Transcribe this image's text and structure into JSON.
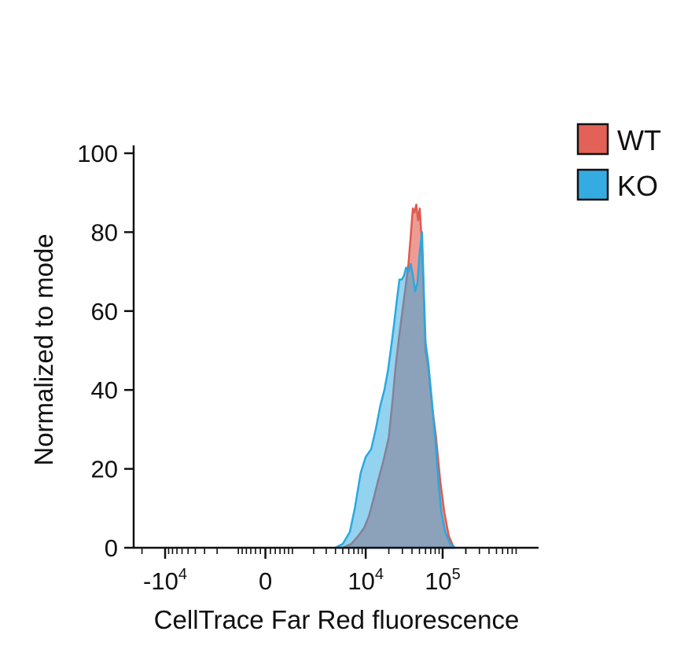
{
  "chart_data": {
    "type": "area",
    "title": "",
    "xlabel": "CellTrace Far Red fluorescence",
    "ylabel": "Normalized to mode",
    "x_scale": "biexponential",
    "ylim": [
      0,
      100
    ],
    "xlim": [
      -15000,
      200000
    ],
    "x_ticks": [
      {
        "value": -10000,
        "base": "-10",
        "exp": "4"
      },
      {
        "value": 0,
        "base": "0",
        "exp": ""
      },
      {
        "value": 10000,
        "base": "10",
        "exp": "4"
      },
      {
        "value": 100000,
        "base": "10",
        "exp": "5"
      }
    ],
    "y_ticks": [
      {
        "value": 0,
        "label": "0"
      },
      {
        "value": 20,
        "label": "20"
      },
      {
        "value": 40,
        "label": "40"
      },
      {
        "value": 60,
        "label": "60"
      },
      {
        "value": 80,
        "label": "80"
      },
      {
        "value": 100,
        "label": "100"
      }
    ],
    "legend_position": "top-right",
    "series": [
      {
        "name": "WT",
        "color": "#e05a4e",
        "fill_opacity": 0.6,
        "points": [
          [
            5000,
            0
          ],
          [
            6500,
            1
          ],
          [
            8000,
            3
          ],
          [
            9500,
            5
          ],
          [
            11000,
            8
          ],
          [
            12500,
            12
          ],
          [
            14500,
            17
          ],
          [
            17000,
            22
          ],
          [
            20000,
            28
          ],
          [
            22500,
            38
          ],
          [
            24500,
            46
          ],
          [
            27000,
            53
          ],
          [
            30000,
            60
          ],
          [
            33000,
            66
          ],
          [
            36000,
            72
          ],
          [
            38500,
            79
          ],
          [
            41000,
            86
          ],
          [
            43000,
            85
          ],
          [
            45500,
            87
          ],
          [
            48000,
            83
          ],
          [
            50500,
            86
          ],
          [
            53000,
            79
          ],
          [
            56000,
            68
          ],
          [
            60000,
            50
          ],
          [
            65000,
            46
          ],
          [
            72000,
            37
          ],
          [
            82000,
            28
          ],
          [
            93000,
            17
          ],
          [
            105000,
            9
          ],
          [
            120000,
            3
          ],
          [
            140000,
            0
          ]
        ]
      },
      {
        "name": "KO",
        "color": "#29a8e0",
        "fill_opacity": 0.5,
        "points": [
          [
            4000,
            0
          ],
          [
            5000,
            1
          ],
          [
            6200,
            4
          ],
          [
            7200,
            10
          ],
          [
            8600,
            19
          ],
          [
            10000,
            23
          ],
          [
            11800,
            25
          ],
          [
            13500,
            30
          ],
          [
            15500,
            36
          ],
          [
            17500,
            40
          ],
          [
            19500,
            45
          ],
          [
            21500,
            51
          ],
          [
            23500,
            57
          ],
          [
            25500,
            63
          ],
          [
            27500,
            68
          ],
          [
            29500,
            68
          ],
          [
            31500,
            69
          ],
          [
            33500,
            71
          ],
          [
            36000,
            70
          ],
          [
            38500,
            72
          ],
          [
            41000,
            69
          ],
          [
            44000,
            65
          ],
          [
            47000,
            67
          ],
          [
            50500,
            75
          ],
          [
            54000,
            80
          ],
          [
            57000,
            65
          ],
          [
            60000,
            52
          ],
          [
            65000,
            47
          ],
          [
            72000,
            38
          ],
          [
            80000,
            28
          ],
          [
            88000,
            17
          ],
          [
            96000,
            9
          ],
          [
            108000,
            4
          ],
          [
            125000,
            1
          ],
          [
            145000,
            0
          ]
        ]
      }
    ]
  }
}
